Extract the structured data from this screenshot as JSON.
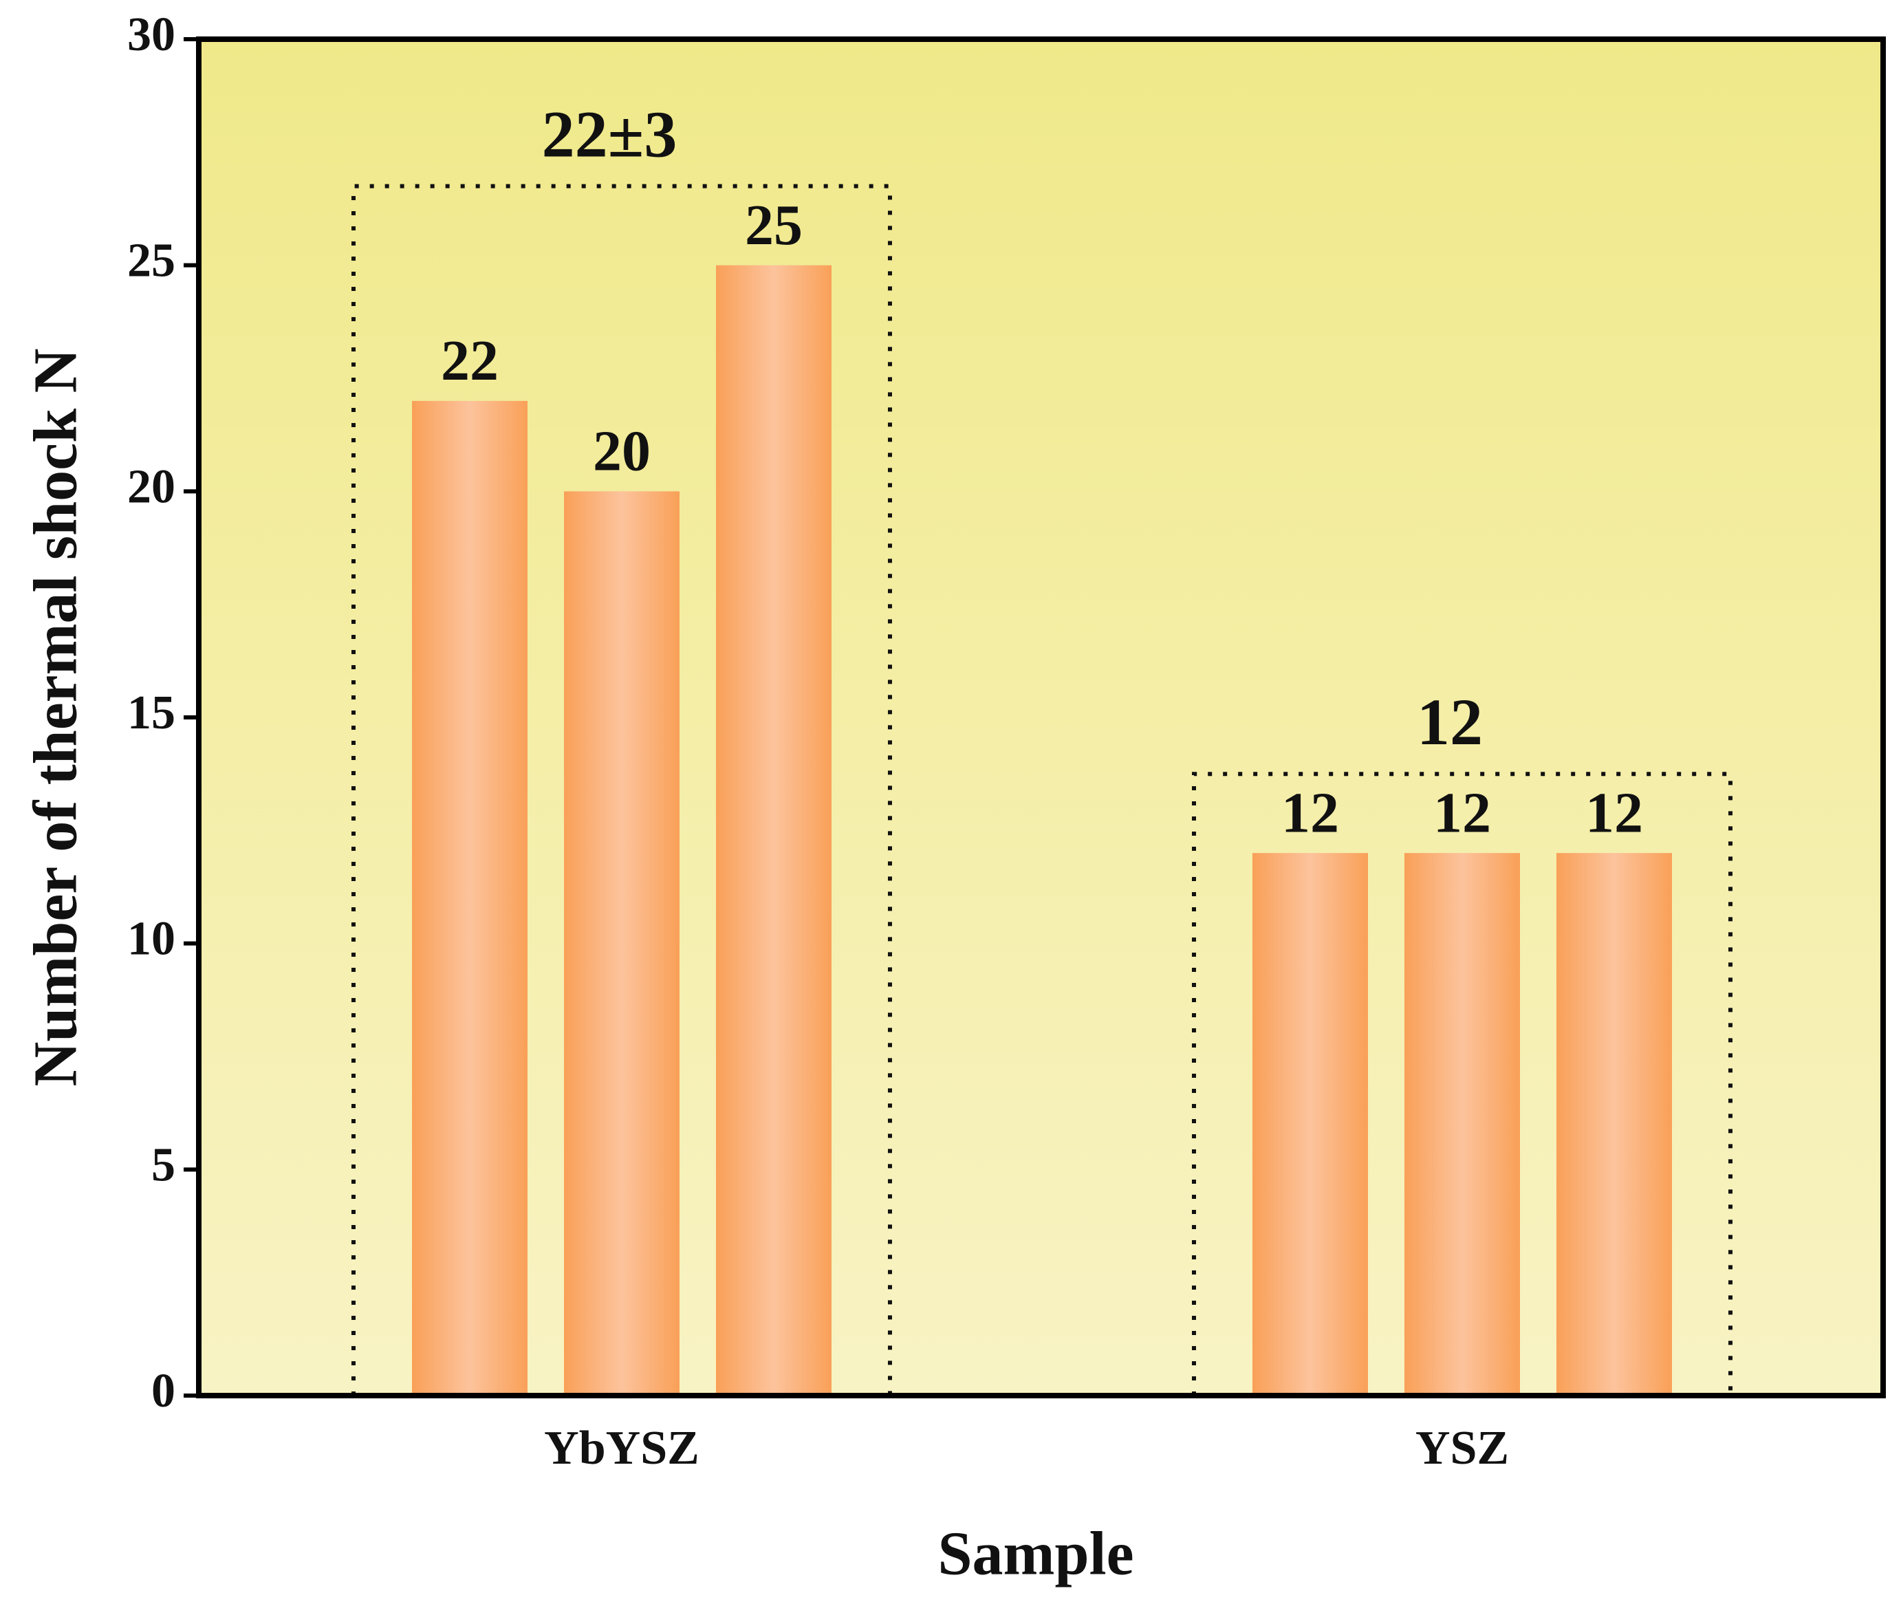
{
  "chart_data": {
    "type": "grouped_bar",
    "y_label": "Number of thermal shock N",
    "x_label": "Sample",
    "categories": [
      "YbYSZ",
      "YSZ"
    ],
    "group_values": [
      [
        22,
        20,
        25
      ],
      [
        12,
        12,
        12
      ]
    ],
    "group_labels": [
      "22±3",
      "12"
    ],
    "ylim": [
      0,
      30
    ],
    "yticks": [
      0,
      5,
      10,
      15,
      20,
      25,
      30
    ],
    "bar_color_edge": "#f9a058",
    "bar_color_center": "#fcc39c",
    "background_top": "#f0e98a",
    "background_bottom": "#f8f3c4"
  }
}
